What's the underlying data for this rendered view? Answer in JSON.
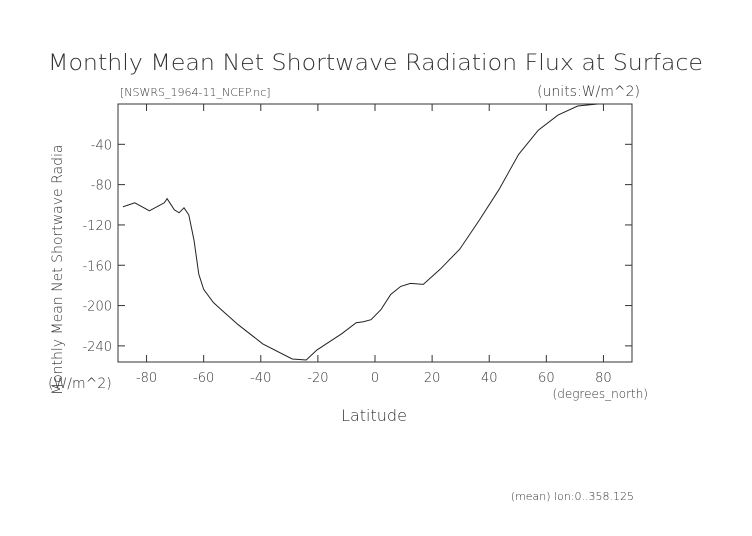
{
  "chart_data": {
    "type": "line",
    "title": "Monthly Mean Net Shortwave Radiation Flux at Surface",
    "file_label": "[NSWRS_1964-11_NCEP.nc]",
    "units_label": "(units:W/m^2)",
    "y_label": "Monthly Mean Net Shortwave Radia",
    "y_unit_label": "(W/m^2)",
    "x_label": "Latitude",
    "x_unit_label": "(degrees_north)",
    "footer": "(mean) lon:0..358.125",
    "x": [
      -88.3,
      -84.1,
      -79,
      -73.8,
      -72.8,
      -70.3,
      -68.6,
      -66.9,
      -65.2,
      -63.4,
      -61.7,
      -60,
      -56.6,
      -53.1,
      -47.9,
      -39.3,
      -29,
      -24.1,
      -20.3,
      -11.7,
      -6.6,
      -4.1,
      -1.4,
      2.1,
      5.5,
      9,
      12.4,
      16.9,
      22.8,
      29.7,
      36.6,
      43.4,
      50.3,
      57.2,
      64.1,
      71,
      77.9
    ],
    "series": [
      {
        "color": "#222222",
        "values": [
          -102,
          -98,
          -106,
          -98,
          -94,
          -105,
          -108,
          -103,
          -110,
          -135,
          -169,
          -184,
          -197,
          -206,
          -219,
          -238,
          -253,
          -254,
          -244,
          -228,
          -217,
          -216,
          -214,
          -204,
          -189,
          -181,
          -178,
          -179,
          -164,
          -144,
          -115,
          -85,
          -50,
          -26,
          -11,
          -2,
          0
        ]
      }
    ],
    "xlim": [
      -90,
      90
    ],
    "ylim": [
      -256,
      0
    ],
    "xticks": [
      -80,
      -60,
      -40,
      -20,
      0,
      20,
      40,
      60,
      80
    ],
    "yticks": [
      -240,
      -200,
      -160,
      -120,
      -80,
      -40
    ]
  }
}
